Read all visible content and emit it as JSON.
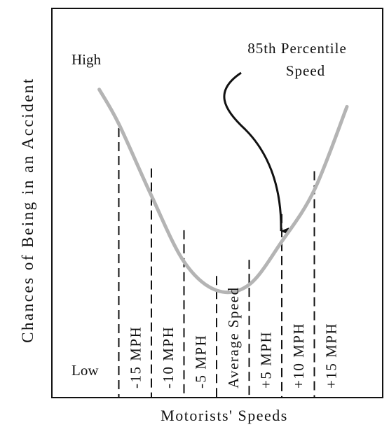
{
  "chart_data": {
    "type": "line",
    "title": "",
    "xlabel": "Motorists' Speeds",
    "ylabel": "Chances of Being in an Accident",
    "y_high_label": "High",
    "y_low_label": "Low",
    "categories": [
      "-15 MPH",
      "-10 MPH",
      "-5 MPH",
      "Average Speed",
      "+5 MPH",
      "+10 MPH",
      "+15 MPH"
    ],
    "x_offsets_mph": [
      -15,
      -10,
      -5,
      0,
      5,
      10,
      15
    ],
    "marker_relative_height": [
      1.0,
      0.85,
      0.62,
      0.45,
      0.51,
      0.68,
      0.84
    ],
    "curve_x_mph": [
      -18,
      -15,
      -10,
      -5,
      0,
      5,
      10,
      15,
      20
    ],
    "curve_relative_chance": [
      0.92,
      0.8,
      0.55,
      0.32,
      0.22,
      0.24,
      0.39,
      0.57,
      0.86
    ],
    "annotation": {
      "lines": [
        "85th Percentile",
        "Speed"
      ],
      "points_to": "+5 MPH"
    },
    "grid": false,
    "legend": "none",
    "colors": {
      "curve": "#b4b4b4",
      "lines": "#111111"
    }
  }
}
